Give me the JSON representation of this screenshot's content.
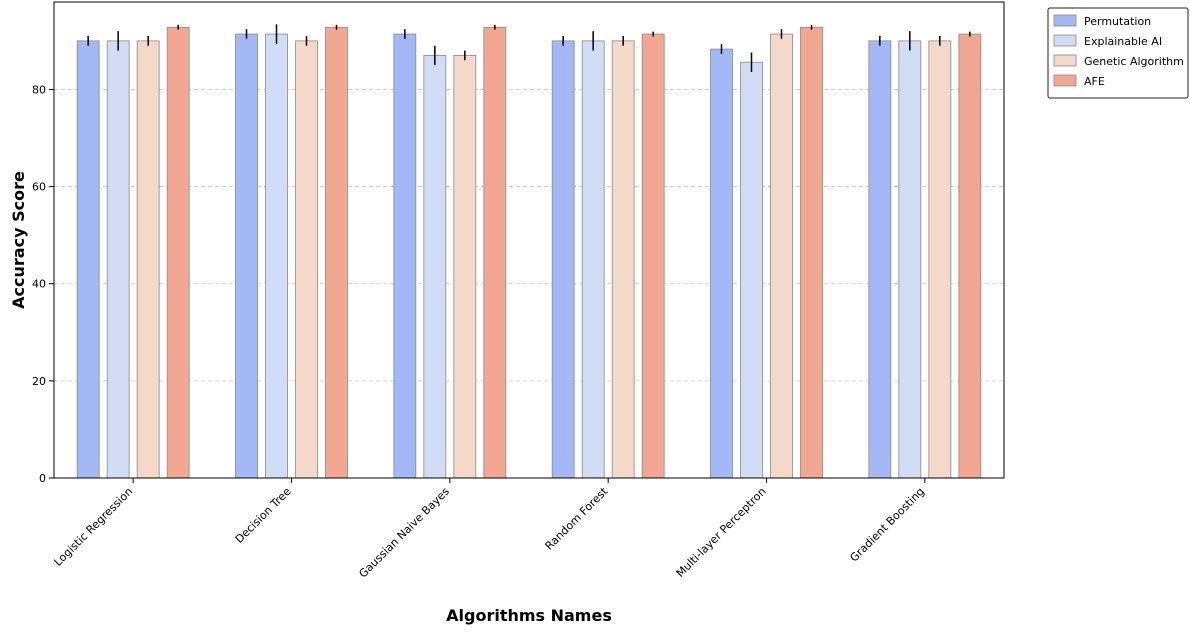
{
  "chart_data": {
    "type": "bar",
    "xlabel": "Algorithms Names",
    "ylabel": "Accuracy Score",
    "ylim": [
      0,
      98
    ],
    "yticks": [
      0,
      20,
      40,
      60,
      80
    ],
    "grid": "y-dashed",
    "legend_position": "outside-top-right",
    "categories": [
      "Logistic Regression",
      "Decision Tree",
      "Gaussian Naive Bayes",
      "Random Forest",
      "Multi-layer Perceptron",
      "Gradient Boosting"
    ],
    "series": [
      {
        "name": "Permutation",
        "color": "#a3b8f7",
        "values": [
          90.0,
          91.4,
          91.4,
          90.0,
          88.3,
          90.0
        ],
        "errors": [
          1.0,
          1.0,
          1.0,
          1.0,
          1.0,
          1.0
        ]
      },
      {
        "name": "Explainable AI",
        "color": "#d0ddf4",
        "values": [
          90.0,
          91.4,
          87.0,
          90.0,
          85.6,
          90.0
        ],
        "errors": [
          2.0,
          2.0,
          2.0,
          2.0,
          2.0,
          2.0
        ]
      },
      {
        "name": "Genetic Algorithm",
        "color": "#f4d8c8",
        "values": [
          90.0,
          90.0,
          87.0,
          90.0,
          91.4,
          90.0
        ],
        "errors": [
          1.0,
          1.0,
          1.0,
          1.0,
          1.0,
          1.0
        ]
      },
      {
        "name": "AFE",
        "color": "#f1a792",
        "values": [
          92.8,
          92.8,
          92.8,
          91.4,
          92.8,
          91.4
        ],
        "errors": [
          0.5,
          0.5,
          0.5,
          0.5,
          0.5,
          0.5
        ]
      }
    ]
  }
}
